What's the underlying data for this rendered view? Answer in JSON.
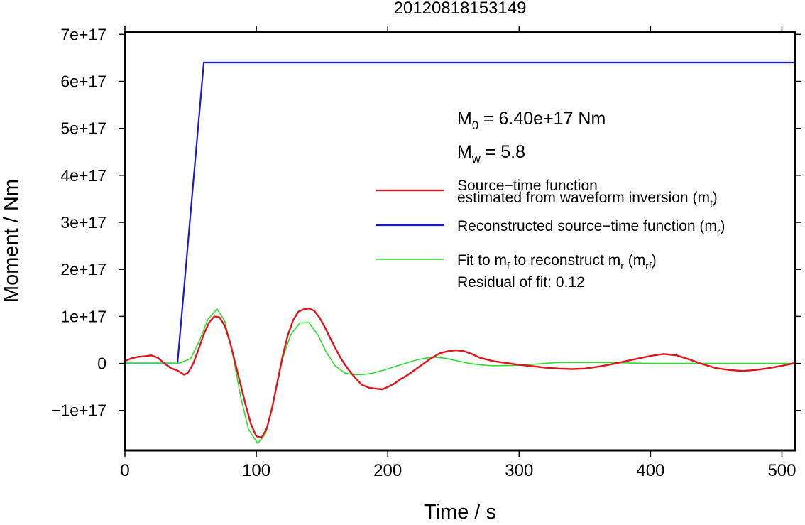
{
  "chart_data": {
    "type": "line",
    "title": "20120818153149",
    "xlabel": "Time / s",
    "ylabel": "Moment / Nm",
    "xlim": [
      0,
      510
    ],
    "ylim": [
      -1.85e+17,
      7.05e+17
    ],
    "x_ticks": [
      0,
      100,
      200,
      300,
      400,
      500
    ],
    "x_tick_labels": [
      "0",
      "100",
      "200",
      "300",
      "400",
      "500"
    ],
    "y_ticks": [
      -1e+17,
      0,
      1e+17,
      2e+17,
      3e+17,
      4e+17,
      5e+17,
      6e+17,
      7e+17
    ],
    "y_tick_labels": [
      "−1e+17",
      "0",
      "1e+17",
      "2e+17",
      "3e+17",
      "4e+17",
      "5e+17",
      "6e+17",
      "7e+17"
    ],
    "grid": false,
    "legend_position": "right",
    "annotations": {
      "m0": {
        "sym": "M",
        "sub": "0",
        "rest": " = 6.40e+17 Nm"
      },
      "mw": {
        "sym": "M",
        "sub": "w",
        "rest": " = 5.8"
      },
      "residual": "Residual of fit: 0.12"
    },
    "legend": [
      {
        "lines": [
          [
            {
              "t": "Source−time function"
            }
          ],
          [
            {
              "t": "estimated from waveform inversion (m"
            },
            {
              "t": "f",
              "sub": true
            },
            {
              "t": ")"
            }
          ]
        ],
        "color": "#e0141a",
        "width": 2.2
      },
      {
        "lines": [
          [
            {
              "t": "Reconstructed source−time function (m"
            },
            {
              "t": "r",
              "sub": true
            },
            {
              "t": ")"
            }
          ]
        ],
        "color": "#1a1ad0",
        "width": 2.2
      },
      {
        "lines": [
          [
            {
              "t": "Fit to m"
            },
            {
              "t": "f",
              "sub": true
            },
            {
              "t": " to reconstruct m"
            },
            {
              "t": "r",
              "sub": true
            },
            {
              "t": " (m"
            },
            {
              "t": "rf",
              "sub": true
            },
            {
              "t": ")"
            }
          ]
        ],
        "color": "#2ae02a",
        "width": 1.6
      }
    ],
    "series": [
      {
        "color": "#1a1ad0",
        "width": 2.2,
        "x": [
          0,
          40,
          45,
          50,
          55,
          60,
          510
        ],
        "y": [
          0,
          0,
          1.6e+17,
          3.2e+17,
          4.8e+17,
          6.4e+17,
          6.4e+17
        ]
      },
      {
        "color": "#2ae02a",
        "width": 1.6,
        "x": [
          0,
          20,
          35,
          42,
          50,
          57,
          63,
          70,
          76,
          82,
          88,
          94,
          101,
          107,
          113,
          120,
          126,
          133,
          140,
          147,
          153,
          160,
          167,
          174,
          180,
          188,
          196,
          204,
          212,
          220,
          228,
          236,
          244,
          252,
          260,
          270,
          280,
          300,
          330,
          360,
          400,
          440,
          480,
          510
        ],
        "y": [
          0,
          0,
          0,
          1000000000000000.0,
          1e+16,
          5e+16,
          9.3e+16,
          1.16e+17,
          9e+16,
          2e+16,
          -7e+16,
          -1.4e+17,
          -1.7e+17,
          -1.5e+17,
          -8e+16,
          1e+16,
          6e+16,
          8.6e+16,
          8.7e+16,
          6e+16,
          2.5e+16,
          -5000000000000000.0,
          -2e+16,
          -2.4e+16,
          -2.4e+16,
          -2.1e+16,
          -1.5e+16,
          -8000000000000000.0,
          -1000000000000000.0,
          6000000000000000.0,
          1.1e+16,
          1.3e+16,
          1.1e+16,
          6000000000000000.0,
          1000000000000000.0,
          -3000000000000000.0,
          -5000000000000000.0,
          -4000000000000000.0,
          2000000000000000.0,
          2000000000000000.0,
          0,
          0,
          0,
          0
        ]
      },
      {
        "color": "#e0141a",
        "width": 2.4,
        "x": [
          0,
          5,
          10,
          15,
          20,
          25,
          30,
          35,
          40,
          45,
          48,
          52,
          56,
          60,
          64,
          68,
          72,
          76,
          80,
          84,
          88,
          92,
          96,
          100,
          104,
          108,
          112,
          116,
          120,
          124,
          128,
          132,
          136,
          140,
          144,
          148,
          152,
          156,
          160,
          164,
          168,
          172,
          176,
          180,
          186,
          192,
          196,
          200,
          205,
          210,
          215,
          220,
          225,
          230,
          235,
          240,
          246,
          252,
          258,
          264,
          270,
          280,
          290,
          300,
          310,
          320,
          330,
          340,
          350,
          360,
          370,
          380,
          390,
          400,
          410,
          420,
          430,
          440,
          450,
          460,
          470,
          480,
          490,
          500,
          510
        ],
        "y": [
          5000000000000000.0,
          1.1e+16,
          1.4e+16,
          1.5e+16,
          1.7e+16,
          1.2e+16,
          0,
          -1e+16,
          -1.5e+16,
          -2.4e+16,
          -2e+16,
          0,
          3e+16,
          6.2e+16,
          8.7e+16,
          1e+17,
          9.8e+16,
          8e+16,
          4.5e+16,
          0.0,
          -4.5e+16,
          -9e+16,
          -1.3e+17,
          -1.55e+17,
          -1.58e+17,
          -1.38e+17,
          -9.5e+16,
          -4e+16,
          1.5e+16,
          6e+16,
          9.2e+16,
          1.1e+17,
          1.15e+17,
          1.17e+17,
          1.12e+17,
          9.8e+16,
          7.8e+16,
          5.5e+16,
          3.3e+16,
          1.2e+16,
          -5000000000000000.0,
          -2e+16,
          -3.3e+16,
          -4.5e+16,
          -5.2e+16,
          -5.4e+16,
          -5.5e+16,
          -5e+16,
          -4.3e+16,
          -3.3e+16,
          -2.5e+16,
          -1.5e+16,
          -5000000000000000.0,
          5000000000000000.0,
          1.4e+16,
          2.2e+16,
          2.6e+16,
          2.8e+16,
          2.6e+16,
          2e+16,
          1.2e+16,
          5000000000000000.0,
          1000000000000000.0,
          -3000000000000000.0,
          -6000000000000000.0,
          -9000000000000000.0,
          -1.1e+16,
          -1.2e+16,
          -1.1e+16,
          -7000000000000000.0,
          -2000000000000000.0,
          4000000000000000.0,
          1e+16,
          1.6e+16,
          2e+16,
          1.7e+16,
          8000000000000000.0,
          -2000000000000000.0,
          -1e+16,
          -1.4e+16,
          -1.6e+16,
          -1.4e+16,
          -1e+16,
          -5000000000000000.0,
          1000000000000000.0
        ]
      }
    ]
  }
}
